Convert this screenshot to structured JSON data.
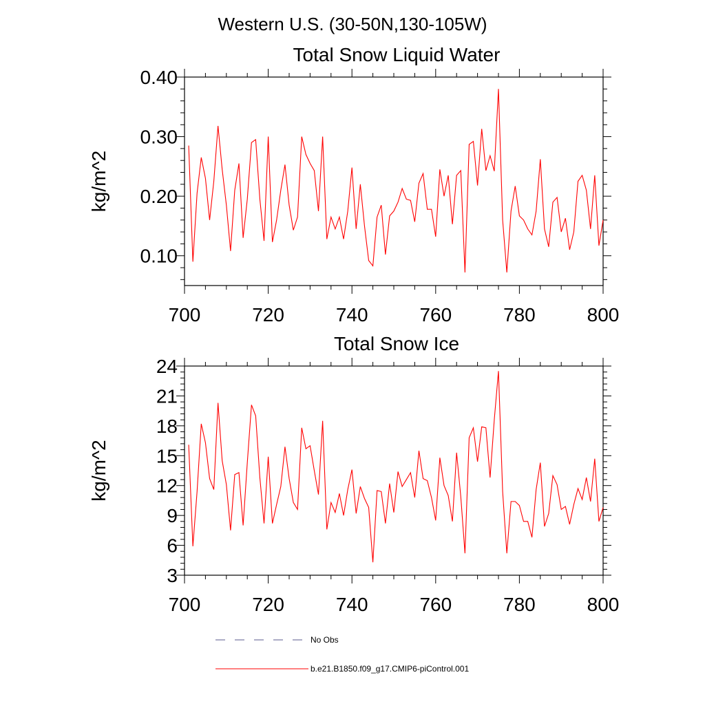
{
  "figure": {
    "main_title": "Western U.S. (30-50N,130-105W)"
  },
  "chart_data": [
    {
      "type": "line",
      "title": "Total Snow Liquid Water",
      "xlabel": "",
      "ylabel": "kg/m^2",
      "xlim": [
        700,
        800
      ],
      "ylim": [
        0.05,
        0.4
      ],
      "xticks": [
        700,
        720,
        740,
        760,
        780,
        800
      ],
      "yticks": [
        0.1,
        0.2,
        0.3,
        0.4
      ],
      "ytick_labels": [
        "0.10",
        "0.20",
        "0.30",
        "0.40"
      ],
      "x_start": 701,
      "series": [
        {
          "name": "b.e21.B1850.f09_g17.CMIP6-piControl.001",
          "color": "#ff0000",
          "values": [
            0.285,
            0.09,
            0.205,
            0.265,
            0.23,
            0.16,
            0.225,
            0.318,
            0.245,
            0.185,
            0.108,
            0.21,
            0.255,
            0.13,
            0.195,
            0.29,
            0.295,
            0.195,
            0.125,
            0.3,
            0.123,
            0.16,
            0.21,
            0.253,
            0.185,
            0.143,
            0.165,
            0.3,
            0.27,
            0.255,
            0.243,
            0.175,
            0.3,
            0.128,
            0.165,
            0.145,
            0.165,
            0.128,
            0.175,
            0.248,
            0.145,
            0.22,
            0.15,
            0.092,
            0.083,
            0.165,
            0.185,
            0.102,
            0.167,
            0.175,
            0.19,
            0.213,
            0.195,
            0.193,
            0.157,
            0.222,
            0.238,
            0.178,
            0.178,
            0.132,
            0.245,
            0.2,
            0.235,
            0.153,
            0.235,
            0.243,
            0.072,
            0.287,
            0.292,
            0.218,
            0.313,
            0.243,
            0.268,
            0.242,
            0.38,
            0.16,
            0.072,
            0.175,
            0.217,
            0.167,
            0.16,
            0.145,
            0.135,
            0.175,
            0.262,
            0.145,
            0.115,
            0.19,
            0.198,
            0.14,
            0.163,
            0.11,
            0.14,
            0.225,
            0.235,
            0.21,
            0.145,
            0.235,
            0.117,
            0.16
          ]
        }
      ]
    },
    {
      "type": "line",
      "title": "Total Snow Ice",
      "xlabel": "",
      "ylabel": "kg/m^2",
      "xlim": [
        700,
        800
      ],
      "ylim": [
        3,
        24
      ],
      "xticks": [
        700,
        720,
        740,
        760,
        780,
        800
      ],
      "yticks": [
        3,
        6,
        9,
        12,
        15,
        18,
        21,
        24
      ],
      "ytick_labels": [
        "3",
        "6",
        "9",
        "12",
        "15",
        "18",
        "21",
        "24"
      ],
      "x_start": 701,
      "series": [
        {
          "name": "b.e21.B1850.f09_g17.CMIP6-piControl.001",
          "color": "#ff0000",
          "values": [
            16.1,
            5.9,
            11.4,
            18.2,
            16.3,
            12.7,
            11.6,
            20.3,
            14.5,
            12.1,
            7.5,
            13.1,
            13.3,
            8.0,
            14.3,
            20.1,
            19.0,
            12.8,
            8.2,
            14.9,
            8.2,
            10.1,
            11.9,
            15.9,
            12.7,
            10.3,
            9.6,
            17.8,
            15.7,
            16.0,
            13.5,
            11.1,
            18.5,
            7.6,
            10.3,
            9.3,
            11.2,
            9.0,
            11.6,
            13.6,
            9.2,
            11.9,
            10.7,
            9.8,
            4.3,
            11.5,
            11.4,
            8.2,
            12.2,
            9.3,
            13.4,
            11.9,
            12.6,
            13.3,
            10.8,
            15.5,
            12.7,
            12.5,
            10.8,
            8.5,
            14.8,
            12.0,
            11.0,
            8.4,
            15.3,
            10.9,
            5.2,
            16.8,
            17.8,
            14.4,
            17.9,
            17.8,
            12.8,
            18.6,
            23.5,
            11.4,
            5.2,
            10.4,
            10.4,
            10.0,
            8.4,
            8.4,
            6.8,
            11.6,
            14.3,
            7.9,
            9.2,
            13.0,
            12.1,
            9.6,
            9.9,
            8.1,
            10.1,
            11.7,
            10.6,
            12.8,
            10.4,
            14.7,
            8.4,
            9.8
          ]
        }
      ]
    }
  ],
  "legend": {
    "items": [
      {
        "label": "No Obs",
        "style": "dashed",
        "color": "#5a5a8c"
      },
      {
        "label": "b.e21.B1850.f09_g17.CMIP6-piControl.001",
        "style": "solid",
        "color": "#ff0000"
      }
    ]
  }
}
